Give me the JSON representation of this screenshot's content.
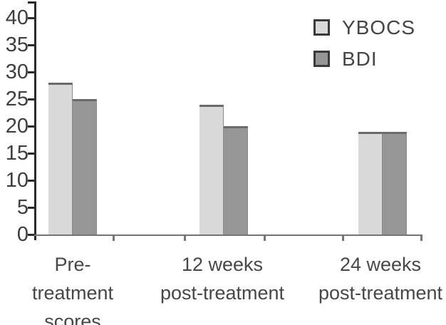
{
  "chart_data": {
    "type": "bar",
    "title": "",
    "categories": [
      "Pre-treatment scores",
      "12 weeks post-treatment",
      "24 weeks post-treatment"
    ],
    "categories_display_lines": [
      [
        "Pre-",
        "treatment",
        "scores"
      ],
      [
        "12 weeks",
        "post-treatment"
      ],
      [
        "24 weeks",
        "post-treatment"
      ]
    ],
    "series": [
      {
        "name": "YBOCS",
        "values": [
          28,
          24,
          19
        ],
        "color": "#d9d9d9"
      },
      {
        "name": "BDI",
        "values": [
          25,
          20,
          19
        ],
        "color": "#969696"
      }
    ],
    "xlabel": "",
    "ylabel": "",
    "ylim": [
      0,
      40
    ],
    "yticks": [
      0,
      5,
      10,
      15,
      20,
      25,
      30,
      35,
      40
    ],
    "grid": false,
    "legend_position": "top-right",
    "colors": {
      "bar_top_edge": "#6a6a6a",
      "y_axis": "#2b2b2b",
      "x_axis": "#757575",
      "tick_label": "#3e3e3e",
      "category_label": "#474747"
    }
  }
}
